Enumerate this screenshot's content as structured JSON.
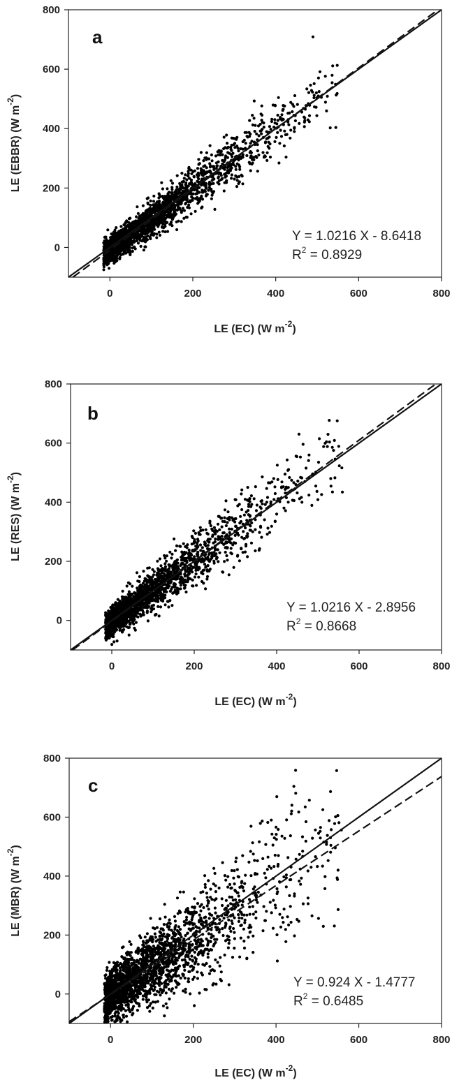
{
  "chart_data": [
    {
      "type": "scatter",
      "panel_label": "a",
      "xlabel": "LE (EC) (W m",
      "xlabel_sup": "-2",
      "xlabel_end": ")",
      "ylabel": "LE (EBBR) (W m",
      "ylabel_sup": "-2",
      "ylabel_end": ")",
      "xlim": [
        -100,
        800
      ],
      "ylim": [
        -100,
        800
      ],
      "xticks": [
        0,
        200,
        400,
        600,
        800
      ],
      "yticks": [
        0,
        200,
        400,
        600,
        800
      ],
      "grid": false,
      "legend": "none",
      "equation": "Y = 1.0216 X - 8.6418",
      "r2_prefix": "R",
      "r2_sup": "2",
      "r2_value": " = 0.8929",
      "fit": {
        "slope": 1.0216,
        "intercept": -8.6418,
        "style": "dashed"
      },
      "one_to_one": {
        "slope": 1,
        "intercept": 0,
        "style": "solid"
      },
      "scatter_model": {
        "n_points": 2200,
        "noise": 38,
        "seed": 11
      }
    },
    {
      "type": "scatter",
      "panel_label": "b",
      "xlabel": "LE (EC) (W m",
      "xlabel_sup": "-2",
      "xlabel_end": ")",
      "ylabel": "LE (RES) (W m",
      "ylabel_sup": "-2",
      "ylabel_end": ")",
      "xlim": [
        -100,
        800
      ],
      "ylim": [
        -100,
        800
      ],
      "xticks": [
        0,
        200,
        400,
        600,
        800
      ],
      "yticks": [
        0,
        200,
        400,
        600,
        800
      ],
      "grid": false,
      "legend": "none",
      "equation": "Y = 1.0216 X - 2.8956",
      "r2_prefix": "R",
      "r2_sup": "2",
      "r2_value": " = 0.8668",
      "fit": {
        "slope": 1.0216,
        "intercept": -2.8956,
        "style": "dashed"
      },
      "one_to_one": {
        "slope": 1,
        "intercept": 0,
        "style": "solid"
      },
      "scatter_model": {
        "n_points": 2000,
        "noise": 45,
        "seed": 23
      }
    },
    {
      "type": "scatter",
      "panel_label": "c",
      "xlabel": "LE (EC) (W m",
      "xlabel_sup": "-2",
      "xlabel_end": ")",
      "ylabel": "LE (MBR) (W m",
      "ylabel_sup": "-2",
      "ylabel_end": ")",
      "xlim": [
        -100,
        800
      ],
      "ylim": [
        -100,
        800
      ],
      "xticks": [
        0,
        200,
        400,
        600,
        800
      ],
      "yticks": [
        0,
        200,
        400,
        600,
        800
      ],
      "grid": false,
      "legend": "none",
      "equation": "Y = 0.924 X - 1.4777",
      "r2_prefix": "R",
      "r2_sup": "2",
      "r2_value": " = 0.6485",
      "fit": {
        "slope": 0.924,
        "intercept": -1.4777,
        "style": "dashed"
      },
      "one_to_one": {
        "slope": 1,
        "intercept": 0,
        "style": "solid"
      },
      "scatter_model": {
        "n_points": 2200,
        "noise": 80,
        "seed": 37
      }
    }
  ]
}
